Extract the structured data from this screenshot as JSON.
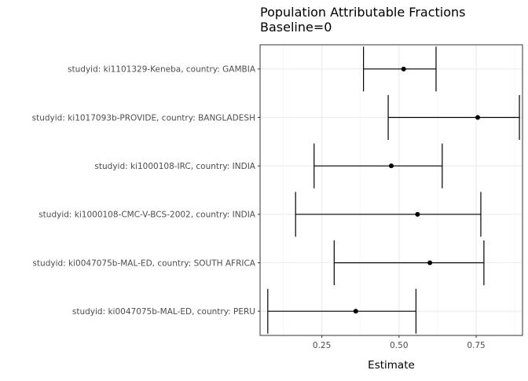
{
  "chart_data": {
    "type": "errorbar",
    "title": "Population Attributable Fractions",
    "subtitle": "Baseline=0",
    "xlabel": "Estimate",
    "ylabel": "",
    "xlim": [
      0.05,
      0.9
    ],
    "x_ticks": [
      0.25,
      0.5,
      0.75
    ],
    "x_tick_labels": [
      "0.25",
      "0.50",
      "0.75"
    ],
    "grid": true,
    "categories": [
      "studyid: ki1101329-Keneba, country: GAMBIA",
      "studyid: ki1017093b-PROVIDE, country: BANGLADESH",
      "studyid: ki1000108-IRC, country: INDIA",
      "studyid: ki1000108-CMC-V-BCS-2002, country: INDIA",
      "studyid: ki0047075b-MAL-ED, country: SOUTH AFRICA",
      "studyid: ki0047075b-MAL-ED, country: PERU"
    ],
    "estimates": [
      0.515,
      0.755,
      0.475,
      0.56,
      0.6,
      0.36
    ],
    "lower": [
      0.385,
      0.465,
      0.225,
      0.165,
      0.29,
      0.075
    ],
    "upper": [
      0.62,
      0.89,
      0.64,
      0.765,
      0.775,
      0.555
    ]
  }
}
